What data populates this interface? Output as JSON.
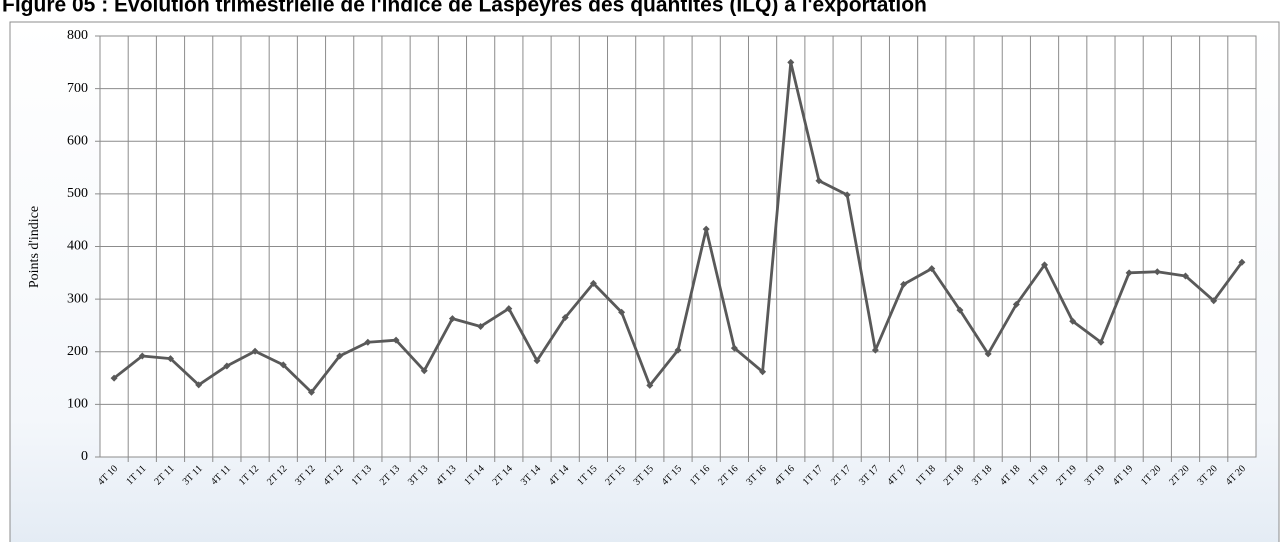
{
  "chart_data": {
    "type": "line",
    "title": "Figure 05 : Evolution trimestrielle de l'indice de Laspeyres des quantités (ILQ) à l'exportation",
    "y_label": "Points d'indice",
    "categories": [
      "4T 10",
      "1T 11",
      "2T 11",
      "3T 11",
      "4T 11",
      "1T 12",
      "2T 12",
      "3T 12",
      "4T 12",
      "1T 13",
      "2T 13",
      "3T 13",
      "4T 13",
      "1T 14",
      "2T 14",
      "3T 14",
      "4T 14",
      "1T 15",
      "2T 15",
      "3T 15",
      "4T 15",
      "1T 16",
      "2T 16",
      "3T 16",
      "4T 16",
      "1T 17",
      "2T 17",
      "3T 17",
      "4T 17",
      "1T 18",
      "2T 18",
      "3T 18",
      "4T 18",
      "1T 19",
      "2T 19",
      "3T 19",
      "4T 19",
      "1T 20",
      "2T 20",
      "3T 20",
      "4T 20"
    ],
    "values": [
      150,
      192,
      187,
      137,
      173,
      201,
      175,
      123,
      192,
      218,
      222,
      164,
      263,
      248,
      282,
      183,
      265,
      330,
      275,
      136,
      203,
      433,
      207,
      162,
      750,
      525,
      498,
      203,
      328,
      358,
      279,
      196,
      290,
      365,
      258,
      218,
      350,
      352,
      344,
      297,
      370
    ],
    "color": "#595959",
    "ylim": [
      0,
      800
    ],
    "yticks": [
      0,
      100,
      200,
      300,
      400,
      500,
      600,
      700,
      800
    ],
    "grid": true
  }
}
